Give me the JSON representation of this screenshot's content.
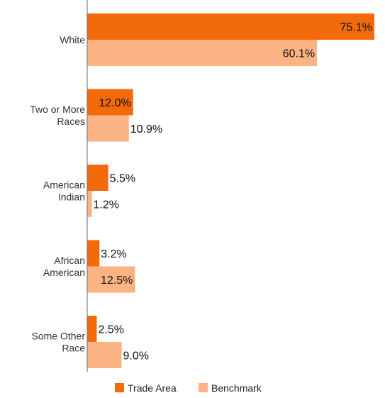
{
  "chart_data": {
    "type": "bar",
    "orientation": "horizontal",
    "categories": [
      [
        "White"
      ],
      [
        "Two or More",
        "Races"
      ],
      [
        "American",
        "Indian"
      ],
      [
        "African",
        "American"
      ],
      [
        "Some Other",
        "Race"
      ]
    ],
    "series": [
      {
        "name": "Trade Area",
        "color": "#f26a0a",
        "values": [
          75.1,
          12.0,
          5.5,
          3.2,
          2.5
        ]
      },
      {
        "name": "Benchmark",
        "color": "#fbb383",
        "values": [
          60.1,
          10.9,
          1.2,
          12.5,
          9.0
        ]
      }
    ],
    "value_suffix": "%",
    "xlim": [
      0,
      75.1
    ],
    "grid": false,
    "legend_position": "bottom-center"
  }
}
